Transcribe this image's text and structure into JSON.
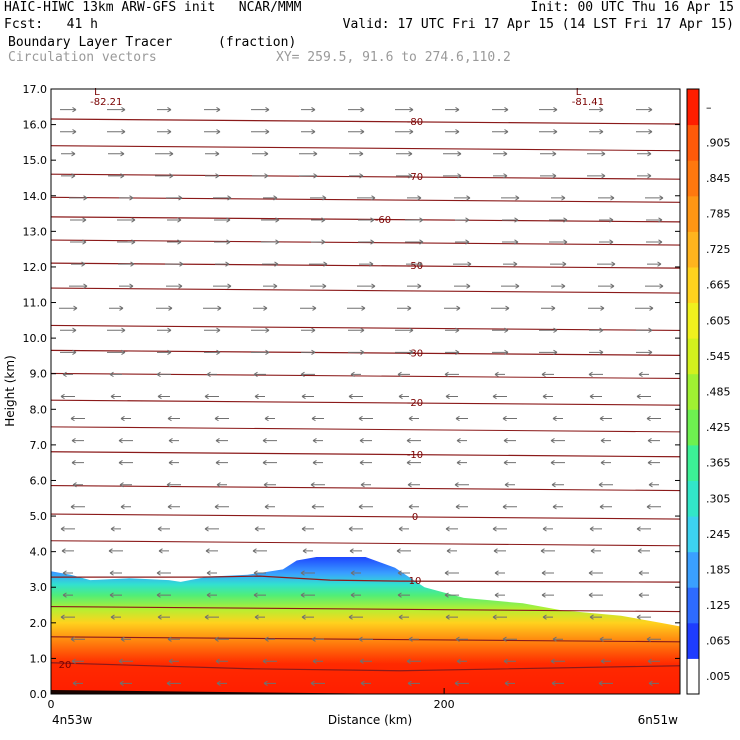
{
  "header": {
    "line1_left": "HAIC-HIWC 13km ARW-GFS init   NCAR/MMM",
    "line1_right": "Init: 00 UTC Thu 16 Apr 15",
    "line2_left": "Fcst:   41 h",
    "line2_right": "Valid: 17 UTC Fri 17 Apr 15 (14 LST Fri 17 Apr 15)",
    "line3_left": "Boundary Layer Tracer",
    "line3_mid": "(fraction)",
    "line4_left": "Circulation vectors",
    "line4_mid": "XY= 259.5, 91.6 to 274.6,110.2"
  },
  "chart_data": {
    "type": "heatmap",
    "title": "Boundary Layer Tracer (fraction)",
    "xlabel": "Distance (km)",
    "ylabel": "Height (km)",
    "xlim": [
      0,
      320
    ],
    "ylim": [
      0,
      17
    ],
    "x_ticks": [
      {
        "value": 0,
        "label": "0"
      },
      {
        "value": 200,
        "label": "200"
      }
    ],
    "x_end_labels": {
      "left": "4n53w",
      "right": "6n51w"
    },
    "y_ticks": [
      "0.0",
      "1.0",
      "2.0",
      "3.0",
      "4.0",
      "5.0",
      "6.0",
      "7.0",
      "8.0",
      "9.0",
      "10.0",
      "11.0",
      "12.0",
      "13.0",
      "14.0",
      "15.0",
      "16.0",
      "17.0"
    ],
    "colorbar": {
      "labels": [
        ".005",
        ".065",
        ".125",
        ".185",
        ".245",
        ".305",
        ".365",
        ".425",
        ".485",
        ".545",
        ".605",
        ".665",
        ".725",
        ".785",
        ".845",
        ".905",
        "–"
      ],
      "colors": [
        "#ffffff",
        "#1e3cff",
        "#2e6bff",
        "#3aa0ff",
        "#3cd2f0",
        "#32e6c8",
        "#3cf096",
        "#6ef050",
        "#a0f032",
        "#d2f01e",
        "#f0f01e",
        "#ffd21e",
        "#ffb41e",
        "#ff9614",
        "#ff780f",
        "#ff5a0a",
        "#ff1e00"
      ]
    },
    "tracer_top_km": [
      [
        0,
        3.45
      ],
      [
        10,
        3.35
      ],
      [
        20,
        3.2
      ],
      [
        40,
        3.25
      ],
      [
        60,
        3.2
      ],
      [
        66,
        3.15
      ],
      [
        80,
        3.3
      ],
      [
        100,
        3.35
      ],
      [
        118,
        3.5
      ],
      [
        125,
        3.75
      ],
      [
        135,
        3.85
      ],
      [
        160,
        3.85
      ],
      [
        175,
        3.55
      ],
      [
        190,
        3.0
      ],
      [
        210,
        2.7
      ],
      [
        240,
        2.55
      ],
      [
        260,
        2.35
      ],
      [
        290,
        2.2
      ],
      [
        310,
        2.0
      ],
      [
        320,
        1.9
      ]
    ],
    "temperature_contours_C": [
      {
        "value": -80,
        "label": "-80",
        "height_km": 16.1
      },
      {
        "value": -70,
        "label": "-70",
        "height_km": 14.55
      },
      {
        "value": -60,
        "label": "-60",
        "height_km": 13.35
      },
      {
        "value": -50,
        "label": "-50",
        "height_km": 12.05
      },
      {
        "value": -30,
        "label": "-30",
        "height_km": 9.6
      },
      {
        "value": -20,
        "label": "-20",
        "height_km": 8.2
      },
      {
        "value": -10,
        "label": "-10",
        "height_km": 6.75
      },
      {
        "value": 0,
        "label": "0",
        "height_km": 5.0
      },
      {
        "value": 10,
        "label": "10",
        "height_km": 3.2
      },
      {
        "value": 20,
        "label": "20",
        "height_km": 0.85
      }
    ],
    "pressure_lows": [
      {
        "label": "L",
        "value": "-82.21",
        "x_km": 25,
        "height_km": 16.6
      },
      {
        "label": "L",
        "value": "-81.41",
        "x_km": 270,
        "height_km": 16.6
      }
    ],
    "vectors": {
      "upper_direction": "eastward (right)",
      "lower_direction": "westward (left)",
      "transition_km": 9.5
    }
  }
}
